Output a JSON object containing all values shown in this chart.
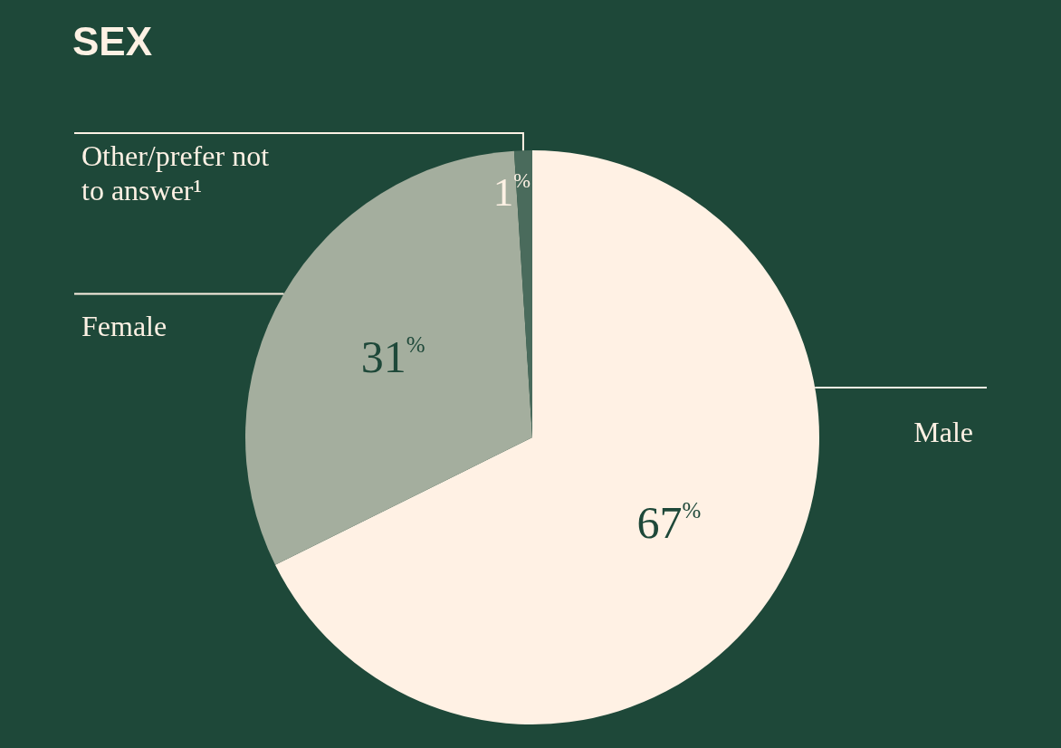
{
  "chart_data": {
    "type": "pie",
    "title": "SEX",
    "categories": [
      "Male",
      "Female",
      "Other/prefer not to answer¹"
    ],
    "values": [
      67,
      31,
      1
    ],
    "colors": [
      "#fff1e4",
      "#a4ae9e",
      "#4a6b5c"
    ],
    "value_labels": [
      "67$^{%}$",
      "31$^{%}$",
      "1$^{%}$"
    ]
  }
}
